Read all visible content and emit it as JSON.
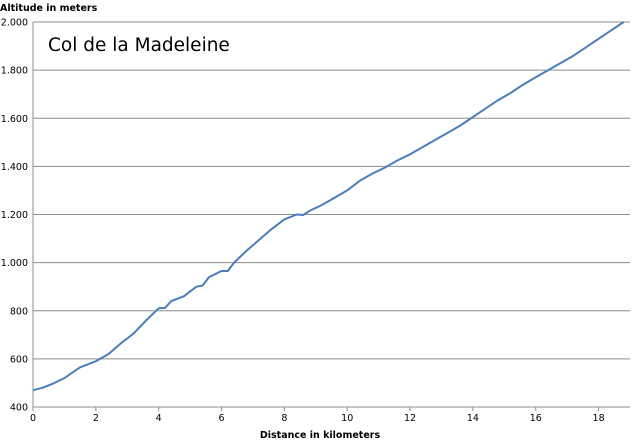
{
  "chart_data": {
    "type": "line",
    "title": "Col de la Madeleine",
    "xlabel": "Distance in kilometers",
    "ylabel": "Altitude in meters",
    "xlim": [
      0,
      19
    ],
    "ylim": [
      400,
      2000
    ],
    "x_ticks": [
      "0",
      "2",
      "4",
      "6",
      "8",
      "10",
      "12",
      "14",
      "16",
      "18"
    ],
    "y_ticks": [
      "400",
      "600",
      "800",
      "1.000",
      "1.200",
      "1.400",
      "1.600",
      "1.800",
      "2.000"
    ],
    "grid": "horizontal",
    "line_color": "#4a7ebb",
    "series": [
      {
        "x": [
          0,
          0.3,
          0.6,
          1.0,
          1.5,
          2.0,
          2.4,
          2.8,
          3.2,
          3.6,
          4.0,
          4.2,
          4.4,
          4.8,
          5.2,
          5.4,
          5.6,
          6.0,
          6.2,
          6.4,
          6.8,
          7.2,
          7.6,
          8.0,
          8.4,
          8.6,
          8.8,
          9.2,
          9.6,
          10.0,
          10.4,
          10.8,
          11.2,
          11.6,
          12.0,
          12.4,
          12.8,
          13.2,
          13.6,
          14.0,
          14.4,
          14.8,
          15.2,
          15.6,
          16.0,
          16.4,
          16.8,
          17.2,
          17.6,
          18.0,
          18.4,
          18.8
        ],
        "y": [
          470,
          480,
          495,
          520,
          565,
          590,
          620,
          665,
          705,
          760,
          810,
          812,
          840,
          860,
          900,
          905,
          940,
          965,
          965,
          1000,
          1050,
          1095,
          1140,
          1180,
          1200,
          1198,
          1215,
          1240,
          1270,
          1300,
          1340,
          1370,
          1395,
          1425,
          1450,
          1480,
          1510,
          1540,
          1570,
          1605,
          1640,
          1675,
          1705,
          1740,
          1770,
          1800,
          1830,
          1860,
          1895,
          1930,
          1965,
          2000
        ]
      }
    ]
  }
}
